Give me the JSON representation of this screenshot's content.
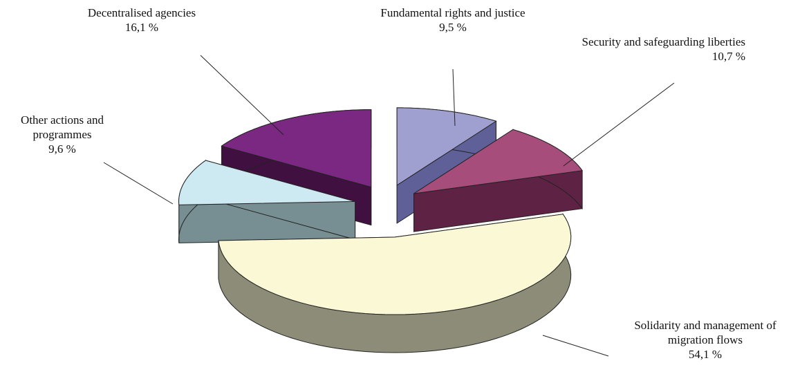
{
  "chart_data": {
    "type": "pie3d",
    "categories": [
      "Fundamental rights and justice",
      "Security and safeguarding liberties",
      "Solidarity and management of migration flows",
      "Other actions and programmes",
      "Decentralised agencies"
    ],
    "values": [
      9.5,
      10.7,
      54.1,
      9.6,
      16.1
    ],
    "value_labels": [
      "9,5 %",
      "10,7 %",
      "54,1 %",
      "9,6 %",
      "16,1 %"
    ],
    "colors": [
      "#a0a0d0",
      "#a64d7c",
      "#fbf8d6",
      "#cde9f2",
      "#7a2882"
    ],
    "side_colors": [
      "#606098",
      "#5e2244",
      "#8c8c78",
      "#778f92",
      "#3f1040"
    ]
  }
}
